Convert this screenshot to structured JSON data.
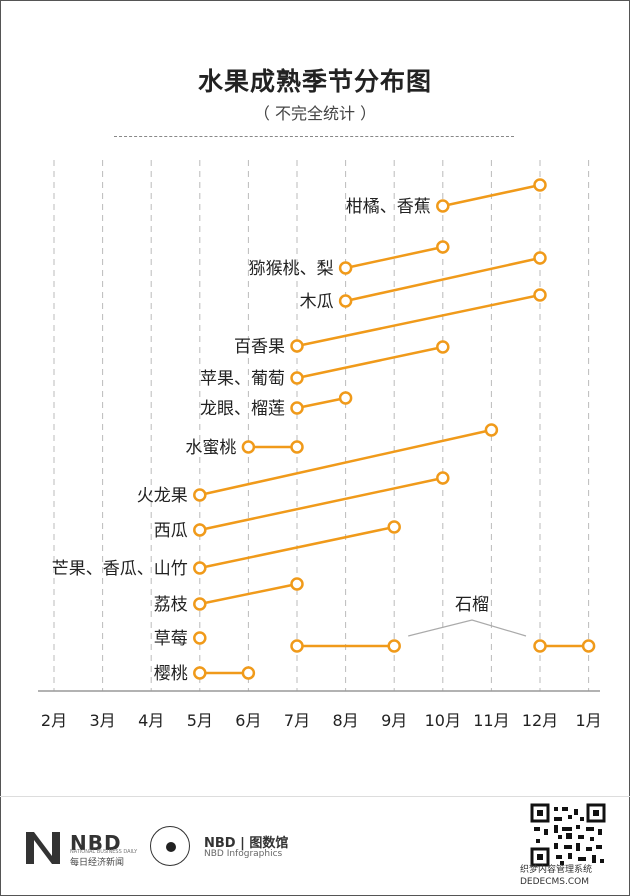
{
  "title": "水果成熟季节分布图",
  "subtitle": "（ 不完全统计 ）",
  "colors": {
    "accent": "#F09A1A",
    "grid": "#bbbbbb",
    "axis": "#999999",
    "text": "#222222"
  },
  "chart_data": {
    "type": "range",
    "months": [
      "2月",
      "3月",
      "4月",
      "5月",
      "6月",
      "7月",
      "8月",
      "9月",
      "10月",
      "11月",
      "12月",
      "1月"
    ],
    "series": [
      {
        "name": "柑橘、香蕉",
        "start": "10月",
        "end": "12月"
      },
      {
        "name": "猕猴桃、梨",
        "start": "8月",
        "end": "10月"
      },
      {
        "name": "木瓜",
        "start": "8月",
        "end": "12月"
      },
      {
        "name": "百香果",
        "start": "7月",
        "end": "12月"
      },
      {
        "name": "苹果、葡萄",
        "start": "7月",
        "end": "10月"
      },
      {
        "name": "龙眼、榴莲",
        "start": "7月",
        "end": "8月"
      },
      {
        "name": "水蜜桃",
        "start": "6月",
        "end": "7月"
      },
      {
        "name": "火龙果",
        "start": "5月",
        "end": "11月"
      },
      {
        "name": "西瓜",
        "start": "5月",
        "end": "10月"
      },
      {
        "name": "芒果、香瓜、山竹",
        "start": "5月",
        "end": "9月"
      },
      {
        "name": "荔枝",
        "start": "5月",
        "end": "7月"
      },
      {
        "name": "草莓",
        "start": "5月",
        "end": "5月"
      },
      {
        "name": "樱桃",
        "start": "5月",
        "end": "6月"
      }
    ],
    "pomegranate": {
      "name": "石榴",
      "segments": [
        {
          "start": "7月",
          "end": "9月"
        },
        {
          "start": "12月",
          "end": "1月"
        }
      ]
    }
  },
  "footer": {
    "nbd": "NBD",
    "nbd_sub_en": "NATIONAL BUSINESS DAILY",
    "nbd_sub_cn": "每日经济新闻",
    "info_title": "NBD | 图数馆",
    "info_sub": "NBD Infographics",
    "watermark": "织梦内容管理系统 DEDECMS.COM"
  }
}
